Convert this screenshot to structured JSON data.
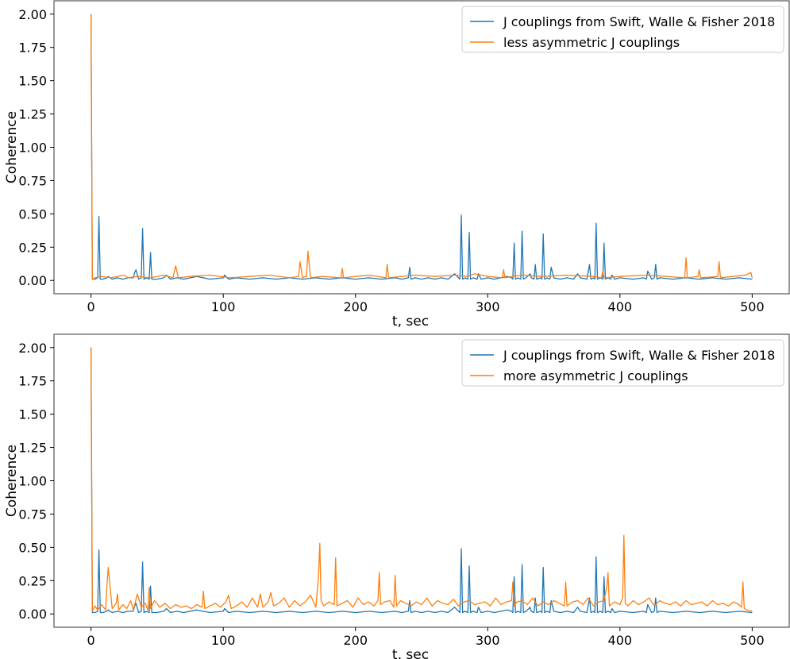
{
  "chart_data": [
    {
      "type": "line",
      "xlabel": "t, sec",
      "ylabel": "Coherence",
      "xlim": [
        -28,
        528
      ],
      "ylim": [
        -0.1,
        2.1
      ],
      "xticks": [
        0,
        100,
        200,
        300,
        400,
        500
      ],
      "yticks": [
        0.0,
        0.25,
        0.5,
        0.75,
        1.0,
        1.25,
        1.5,
        1.75,
        2.0
      ],
      "grid": false,
      "legend_position": "top-right",
      "series": [
        {
          "name": "J couplings from Swift, Walle & Fisher 2018",
          "color": "#1f77b4",
          "x": [
            0,
            1,
            3,
            5,
            6,
            7,
            9,
            12,
            13,
            16,
            20,
            24,
            28,
            32,
            33,
            34,
            36,
            38,
            39,
            40,
            42,
            44,
            45,
            46,
            50,
            55,
            57,
            60,
            65,
            70,
            80,
            90,
            100,
            101,
            104,
            110,
            120,
            130,
            140,
            150,
            160,
            170,
            180,
            190,
            200,
            210,
            220,
            230,
            235,
            240,
            241,
            242,
            245,
            250,
            255,
            260,
            265,
            270,
            275,
            278,
            279,
            280,
            281,
            283,
            285,
            286,
            287,
            289,
            292,
            293,
            295,
            300,
            305,
            310,
            315,
            318,
            319,
            320,
            321,
            323,
            325,
            326,
            327,
            329,
            332,
            333,
            335,
            336,
            337,
            340,
            341,
            342,
            343,
            345,
            347,
            348,
            350,
            355,
            360,
            365,
            368,
            370,
            375,
            377,
            378,
            380,
            381,
            382,
            383,
            385,
            387,
            388,
            389,
            391,
            393,
            394,
            396,
            400,
            410,
            418,
            420,
            421,
            424,
            426,
            427,
            428,
            430,
            440,
            450,
            460,
            470,
            480,
            490,
            500
          ],
          "y": [
            2.0,
            0.01,
            0.01,
            0.02,
            0.48,
            0.01,
            0.01,
            0.02,
            0.03,
            0.01,
            0.02,
            0.01,
            0.02,
            0.02,
            0.06,
            0.08,
            0.01,
            0.02,
            0.39,
            0.01,
            0.02,
            0.01,
            0.21,
            0.01,
            0.01,
            0.02,
            0.04,
            0.01,
            0.02,
            0.01,
            0.03,
            0.01,
            0.02,
            0.04,
            0.01,
            0.02,
            0.01,
            0.02,
            0.01,
            0.02,
            0.01,
            0.02,
            0.01,
            0.02,
            0.01,
            0.02,
            0.01,
            0.02,
            0.01,
            0.02,
            0.1,
            0.01,
            0.02,
            0.01,
            0.02,
            0.01,
            0.02,
            0.01,
            0.05,
            0.02,
            0.01,
            0.49,
            0.01,
            0.02,
            0.01,
            0.36,
            0.01,
            0.02,
            0.01,
            0.05,
            0.01,
            0.02,
            0.01,
            0.02,
            0.03,
            0.02,
            0.01,
            0.28,
            0.01,
            0.02,
            0.01,
            0.37,
            0.01,
            0.02,
            0.05,
            0.02,
            0.01,
            0.12,
            0.01,
            0.02,
            0.01,
            0.35,
            0.01,
            0.02,
            0.01,
            0.1,
            0.02,
            0.01,
            0.02,
            0.01,
            0.05,
            0.02,
            0.01,
            0.12,
            0.01,
            0.02,
            0.01,
            0.43,
            0.01,
            0.02,
            0.01,
            0.28,
            0.01,
            0.02,
            0.01,
            0.04,
            0.01,
            0.02,
            0.01,
            0.02,
            0.01,
            0.07,
            0.01,
            0.02,
            0.12,
            0.01,
            0.02,
            0.01,
            0.02,
            0.01,
            0.02,
            0.01,
            0.02,
            0.01
          ]
        },
        {
          "name": "less asymmetric J couplings",
          "color": "#ff7f0e",
          "x": [
            0,
            1,
            3,
            8,
            15,
            25,
            28,
            35,
            45,
            55,
            62,
            64,
            66,
            75,
            90,
            105,
            120,
            135,
            150,
            157,
            158,
            160,
            162,
            163,
            164,
            166,
            175,
            189,
            190,
            191,
            200,
            210,
            223,
            224,
            225,
            235,
            245,
            260,
            275,
            285,
            290,
            300,
            311,
            312,
            313,
            325,
            340,
            360,
            380,
            386,
            387,
            388,
            400,
            420,
            435,
            449,
            450,
            451,
            459,
            460,
            461,
            474,
            475,
            476,
            485,
            495,
            499,
            500
          ],
          "y": [
            2.0,
            0.01,
            0.02,
            0.03,
            0.02,
            0.04,
            0.02,
            0.03,
            0.02,
            0.04,
            0.02,
            0.11,
            0.02,
            0.03,
            0.04,
            0.02,
            0.03,
            0.04,
            0.02,
            0.03,
            0.14,
            0.02,
            0.03,
            0.03,
            0.22,
            0.02,
            0.03,
            0.02,
            0.09,
            0.02,
            0.03,
            0.04,
            0.02,
            0.12,
            0.02,
            0.03,
            0.04,
            0.03,
            0.04,
            0.03,
            0.05,
            0.03,
            0.02,
            0.08,
            0.02,
            0.04,
            0.03,
            0.04,
            0.03,
            0.02,
            0.07,
            0.02,
            0.03,
            0.04,
            0.03,
            0.02,
            0.17,
            0.02,
            0.03,
            0.08,
            0.02,
            0.03,
            0.14,
            0.02,
            0.03,
            0.04,
            0.06,
            0.02
          ]
        }
      ]
    },
    {
      "type": "line",
      "xlabel": "t, sec",
      "ylabel": "Coherence",
      "xlim": [
        -28,
        528
      ],
      "ylim": [
        -0.1,
        2.1
      ],
      "xticks": [
        0,
        100,
        200,
        300,
        400,
        500
      ],
      "yticks": [
        0.0,
        0.25,
        0.5,
        0.75,
        1.0,
        1.25,
        1.5,
        1.75,
        2.0
      ],
      "grid": false,
      "legend_position": "top-right",
      "series": [
        {
          "name": "J couplings from Swift, Walle & Fisher 2018",
          "color": "#1f77b4",
          "x": [
            0,
            1,
            3,
            5,
            6,
            7,
            9,
            12,
            13,
            16,
            20,
            24,
            28,
            32,
            33,
            34,
            36,
            38,
            39,
            40,
            42,
            44,
            45,
            46,
            50,
            55,
            57,
            60,
            65,
            70,
            80,
            90,
            100,
            101,
            104,
            110,
            120,
            130,
            140,
            150,
            160,
            170,
            180,
            190,
            200,
            210,
            220,
            230,
            235,
            240,
            241,
            242,
            245,
            250,
            255,
            260,
            265,
            270,
            275,
            278,
            279,
            280,
            281,
            283,
            285,
            286,
            287,
            289,
            292,
            293,
            295,
            300,
            305,
            310,
            315,
            318,
            319,
            320,
            321,
            323,
            325,
            326,
            327,
            329,
            332,
            333,
            335,
            336,
            337,
            340,
            341,
            342,
            343,
            345,
            347,
            348,
            350,
            355,
            360,
            365,
            368,
            370,
            375,
            377,
            378,
            380,
            381,
            382,
            383,
            385,
            387,
            388,
            389,
            391,
            393,
            394,
            396,
            400,
            410,
            418,
            420,
            421,
            424,
            426,
            427,
            428,
            430,
            440,
            450,
            460,
            470,
            480,
            490,
            500
          ],
          "y": [
            2.0,
            0.01,
            0.01,
            0.02,
            0.48,
            0.01,
            0.01,
            0.02,
            0.03,
            0.01,
            0.02,
            0.01,
            0.02,
            0.02,
            0.06,
            0.08,
            0.01,
            0.02,
            0.39,
            0.01,
            0.02,
            0.01,
            0.21,
            0.01,
            0.01,
            0.02,
            0.04,
            0.01,
            0.02,
            0.01,
            0.03,
            0.01,
            0.02,
            0.04,
            0.01,
            0.02,
            0.01,
            0.02,
            0.01,
            0.02,
            0.01,
            0.02,
            0.01,
            0.02,
            0.01,
            0.02,
            0.01,
            0.02,
            0.01,
            0.02,
            0.1,
            0.01,
            0.02,
            0.01,
            0.02,
            0.01,
            0.02,
            0.01,
            0.05,
            0.02,
            0.01,
            0.49,
            0.01,
            0.02,
            0.01,
            0.36,
            0.01,
            0.02,
            0.01,
            0.05,
            0.01,
            0.02,
            0.01,
            0.02,
            0.03,
            0.02,
            0.01,
            0.28,
            0.01,
            0.02,
            0.01,
            0.37,
            0.01,
            0.02,
            0.05,
            0.02,
            0.01,
            0.12,
            0.01,
            0.02,
            0.01,
            0.35,
            0.01,
            0.02,
            0.01,
            0.1,
            0.02,
            0.01,
            0.02,
            0.01,
            0.05,
            0.02,
            0.01,
            0.12,
            0.01,
            0.02,
            0.01,
            0.43,
            0.01,
            0.02,
            0.01,
            0.28,
            0.01,
            0.02,
            0.01,
            0.04,
            0.01,
            0.02,
            0.01,
            0.02,
            0.01,
            0.07,
            0.01,
            0.02,
            0.12,
            0.01,
            0.02,
            0.01,
            0.02,
            0.01,
            0.02,
            0.01,
            0.02,
            0.01
          ]
        },
        {
          "name": "more asymmetric J couplings",
          "color": "#ff7f0e",
          "x": [
            0,
            1,
            3,
            5,
            8,
            11,
            12,
            13,
            16,
            19,
            20,
            21,
            24,
            27,
            30,
            32,
            35,
            38,
            41,
            43,
            44,
            45,
            48,
            52,
            56,
            60,
            64,
            68,
            72,
            76,
            80,
            84,
            85,
            86,
            90,
            94,
            98,
            102,
            104,
            106,
            110,
            114,
            118,
            122,
            126,
            128,
            130,
            134,
            136,
            138,
            142,
            146,
            150,
            154,
            158,
            162,
            166,
            170,
            172,
            173,
            174,
            176,
            180,
            184,
            185,
            186,
            190,
            194,
            198,
            202,
            206,
            210,
            214,
            217,
            218,
            219,
            222,
            226,
            229,
            230,
            231,
            234,
            238,
            242,
            246,
            250,
            254,
            258,
            262,
            266,
            270,
            274,
            278,
            282,
            286,
            290,
            294,
            298,
            302,
            306,
            310,
            314,
            318,
            319,
            320,
            322,
            326,
            330,
            334,
            338,
            342,
            346,
            350,
            354,
            358,
            359,
            360,
            364,
            368,
            372,
            376,
            380,
            384,
            388,
            390,
            391,
            392,
            396,
            400,
            402,
            403,
            404,
            406,
            410,
            414,
            418,
            422,
            426,
            430,
            434,
            438,
            442,
            446,
            450,
            454,
            458,
            462,
            466,
            470,
            474,
            478,
            482,
            486,
            490,
            492,
            493,
            494,
            496,
            500
          ],
          "y": [
            2.0,
            0.02,
            0.06,
            0.03,
            0.07,
            0.03,
            0.2,
            0.35,
            0.04,
            0.08,
            0.15,
            0.03,
            0.07,
            0.04,
            0.1,
            0.03,
            0.15,
            0.05,
            0.08,
            0.03,
            0.2,
            0.04,
            0.1,
            0.05,
            0.08,
            0.04,
            0.07,
            0.05,
            0.06,
            0.04,
            0.07,
            0.05,
            0.17,
            0.04,
            0.06,
            0.08,
            0.05,
            0.09,
            0.14,
            0.04,
            0.06,
            0.09,
            0.05,
            0.12,
            0.05,
            0.15,
            0.05,
            0.09,
            0.16,
            0.06,
            0.08,
            0.12,
            0.05,
            0.1,
            0.06,
            0.09,
            0.14,
            0.05,
            0.27,
            0.53,
            0.1,
            0.06,
            0.09,
            0.07,
            0.42,
            0.06,
            0.08,
            0.1,
            0.05,
            0.12,
            0.07,
            0.09,
            0.06,
            0.1,
            0.31,
            0.07,
            0.09,
            0.1,
            0.05,
            0.29,
            0.06,
            0.1,
            0.08,
            0.06,
            0.09,
            0.07,
            0.12,
            0.06,
            0.1,
            0.08,
            0.07,
            0.11,
            0.06,
            0.09,
            0.1,
            0.07,
            0.08,
            0.09,
            0.06,
            0.12,
            0.07,
            0.09,
            0.1,
            0.24,
            0.06,
            0.09,
            0.1,
            0.07,
            0.12,
            0.06,
            0.09,
            0.07,
            0.1,
            0.08,
            0.06,
            0.24,
            0.06,
            0.09,
            0.1,
            0.07,
            0.12,
            0.06,
            0.09,
            0.1,
            0.2,
            0.31,
            0.06,
            0.09,
            0.07,
            0.12,
            0.59,
            0.08,
            0.06,
            0.1,
            0.07,
            0.09,
            0.12,
            0.06,
            0.1,
            0.08,
            0.07,
            0.09,
            0.06,
            0.1,
            0.07,
            0.08,
            0.09,
            0.06,
            0.1,
            0.07,
            0.08,
            0.06,
            0.09,
            0.07,
            0.05,
            0.24,
            0.04,
            0.03,
            0.02
          ]
        }
      ]
    }
  ]
}
